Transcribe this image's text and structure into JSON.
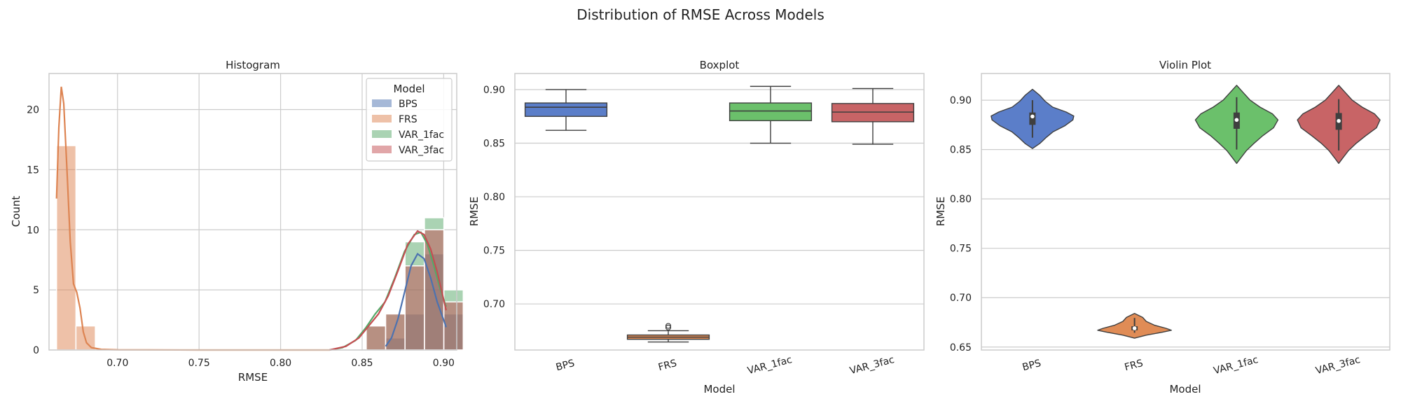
{
  "suptitle": "Distribution of RMSE Across Models",
  "colors": {
    "BPS": "#4c72b0",
    "FRS": "#dd8452",
    "VAR_1fac": "#55a868",
    "VAR_3fac": "#c44e52",
    "BPS_box": "#5b7ec9",
    "FRS_box": "#e08c56",
    "VAR_1fac_box": "#6bc06b",
    "VAR_3fac_box": "#c86466"
  },
  "chart_data": [
    {
      "type": "histogram",
      "title": "Histogram",
      "xlabel": "RMSE",
      "ylabel": "Count",
      "xlim": [
        0.658,
        0.908
      ],
      "ylim": [
        0,
        23
      ],
      "xticks": [
        0.7,
        0.75,
        0.8,
        0.85,
        0.9
      ],
      "xtick_labels": [
        "0.70",
        "0.75",
        "0.80",
        "0.85",
        "0.90"
      ],
      "yticks": [
        0,
        5,
        10,
        15,
        20
      ],
      "ytick_labels": [
        "0",
        "5",
        "10",
        "15",
        "20"
      ],
      "grid": true,
      "legend": {
        "title": "Model",
        "placement": "top-right",
        "entries": [
          "BPS",
          "FRS",
          "VAR_1fac",
          "VAR_3fac"
        ]
      },
      "bin_width": 0.0119,
      "series": [
        {
          "name": "BPS",
          "bins": [
            [
              0.8644,
              1
            ],
            [
              0.8763,
              3
            ],
            [
              0.8882,
              8
            ],
            [
              0.9001,
              3
            ]
          ]
        },
        {
          "name": "FRS",
          "bins": [
            [
              0.6626,
              17
            ],
            [
              0.6745,
              2
            ]
          ]
        },
        {
          "name": "VAR_1fac",
          "bins": [
            [
              0.8525,
              2
            ],
            [
              0.8644,
              3
            ],
            [
              0.8763,
              9
            ],
            [
              0.8882,
              11
            ],
            [
              0.9001,
              5
            ]
          ]
        },
        {
          "name": "VAR_3fac",
          "bins": [
            [
              0.8525,
              2
            ],
            [
              0.8644,
              3
            ],
            [
              0.8763,
              7
            ],
            [
              0.8882,
              10
            ],
            [
              0.9001,
              4
            ]
          ]
        }
      ],
      "kde": [
        {
          "name": "BPS",
          "points": [
            [
              0.8644,
              0.3
            ],
            [
              0.868,
              1.0
            ],
            [
              0.872,
              2.6
            ],
            [
              0.876,
              4.8
            ],
            [
              0.88,
              7.0
            ],
            [
              0.884,
              8.0
            ],
            [
              0.888,
              7.6
            ],
            [
              0.892,
              6.0
            ],
            [
              0.896,
              4.0
            ],
            [
              0.9,
              2.5
            ],
            [
              0.9015,
              1.9
            ]
          ]
        },
        {
          "name": "FRS",
          "points": [
            [
              0.6626,
              12.6
            ],
            [
              0.664,
              18.5
            ],
            [
              0.6655,
              21.9
            ],
            [
              0.667,
              20.5
            ],
            [
              0.669,
              15.0
            ],
            [
              0.671,
              9.0
            ],
            [
              0.673,
              5.5
            ],
            [
              0.675,
              4.8
            ],
            [
              0.677,
              3.5
            ],
            [
              0.679,
              1.5
            ],
            [
              0.681,
              0.6
            ],
            [
              0.684,
              0.2
            ],
            [
              0.69,
              0.05
            ],
            [
              0.7,
              0.02
            ],
            [
              0.75,
              0.0
            ],
            [
              0.8,
              0.0
            ],
            [
              0.83,
              0.0
            ]
          ]
        },
        {
          "name": "VAR_1fac",
          "points": [
            [
              0.83,
              0.0
            ],
            [
              0.838,
              0.2
            ],
            [
              0.846,
              0.8
            ],
            [
              0.852,
              1.8
            ],
            [
              0.858,
              3.0
            ],
            [
              0.864,
              4.0
            ],
            [
              0.87,
              6.0
            ],
            [
              0.876,
              8.2
            ],
            [
              0.882,
              9.6
            ],
            [
              0.886,
              9.8
            ],
            [
              0.89,
              8.8
            ],
            [
              0.894,
              7.0
            ],
            [
              0.898,
              5.0
            ],
            [
              0.9015,
              3.6
            ]
          ]
        },
        {
          "name": "VAR_3fac",
          "points": [
            [
              0.83,
              0.0
            ],
            [
              0.84,
              0.3
            ],
            [
              0.848,
              1.0
            ],
            [
              0.854,
              2.0
            ],
            [
              0.86,
              3.0
            ],
            [
              0.866,
              4.5
            ],
            [
              0.872,
              6.6
            ],
            [
              0.878,
              8.8
            ],
            [
              0.884,
              9.9
            ],
            [
              0.888,
              9.6
            ],
            [
              0.892,
              8.4
            ],
            [
              0.896,
              6.5
            ],
            [
              0.9015,
              3.3
            ]
          ]
        }
      ]
    },
    {
      "type": "box",
      "title": "Boxplot",
      "xlabel": "Model",
      "ylabel": "RMSE",
      "categories": [
        "BPS",
        "FRS",
        "VAR_1fac",
        "VAR_3fac"
      ],
      "ylim": [
        0.657,
        0.915
      ],
      "yticks": [
        0.7,
        0.75,
        0.8,
        0.85,
        0.9
      ],
      "ytick_labels": [
        "0.70",
        "0.75",
        "0.80",
        "0.85",
        "0.90"
      ],
      "grid": true,
      "boxes": [
        {
          "name": "BPS",
          "whislo": 0.862,
          "q1": 0.875,
          "med": 0.8835,
          "q3": 0.8875,
          "whishi": 0.9,
          "fliers": []
        },
        {
          "name": "FRS",
          "whislo": 0.6645,
          "q1": 0.667,
          "med": 0.669,
          "q3": 0.671,
          "whishi": 0.675,
          "fliers": [
            0.678,
            0.6795
          ]
        },
        {
          "name": "VAR_1fac",
          "whislo": 0.85,
          "q1": 0.871,
          "med": 0.88,
          "q3": 0.8875,
          "whishi": 0.903,
          "fliers": []
        },
        {
          "name": "VAR_3fac",
          "whislo": 0.849,
          "q1": 0.87,
          "med": 0.879,
          "q3": 0.887,
          "whishi": 0.901,
          "fliers": []
        }
      ]
    },
    {
      "type": "violin",
      "title": "Violin Plot",
      "xlabel": "Model",
      "ylabel": "RMSE",
      "categories": [
        "BPS",
        "FRS",
        "VAR_1fac",
        "VAR_3fac"
      ],
      "ylim": [
        0.647,
        0.927
      ],
      "yticks": [
        0.65,
        0.7,
        0.75,
        0.8,
        0.85,
        0.9
      ],
      "ytick_labels": [
        "0.65",
        "0.70",
        "0.75",
        "0.80",
        "0.85",
        "0.90"
      ],
      "grid": true,
      "violins": [
        {
          "name": "BPS",
          "q1": 0.875,
          "med": 0.8835,
          "q3": 0.8875,
          "whislo": 0.862,
          "whishi": 0.9,
          "profile": [
            [
              0.851,
              0.0
            ],
            [
              0.856,
              0.16
            ],
            [
              0.862,
              0.3
            ],
            [
              0.868,
              0.46
            ],
            [
              0.874,
              0.72
            ],
            [
              0.88,
              0.9
            ],
            [
              0.884,
              0.92
            ],
            [
              0.888,
              0.75
            ],
            [
              0.893,
              0.45
            ],
            [
              0.899,
              0.28
            ],
            [
              0.905,
              0.16
            ],
            [
              0.911,
              0.0
            ]
          ]
        },
        {
          "name": "FRS",
          "q1": 0.667,
          "med": 0.669,
          "q3": 0.671,
          "whislo": 0.6645,
          "whishi": 0.6795,
          "profile": [
            [
              0.659,
              0.0
            ],
            [
              0.662,
              0.26
            ],
            [
              0.665,
              0.62
            ],
            [
              0.667,
              0.82
            ],
            [
              0.669,
              0.7
            ],
            [
              0.672,
              0.45
            ],
            [
              0.676,
              0.26
            ],
            [
              0.68,
              0.18
            ],
            [
              0.684,
              0.0
            ]
          ]
        },
        {
          "name": "VAR_1fac",
          "q1": 0.871,
          "med": 0.88,
          "q3": 0.8875,
          "whislo": 0.85,
          "whishi": 0.903,
          "profile": [
            [
              0.836,
              0.0
            ],
            [
              0.842,
              0.1
            ],
            [
              0.849,
              0.22
            ],
            [
              0.856,
              0.38
            ],
            [
              0.864,
              0.58
            ],
            [
              0.872,
              0.82
            ],
            [
              0.88,
              0.92
            ],
            [
              0.886,
              0.8
            ],
            [
              0.893,
              0.52
            ],
            [
              0.9,
              0.3
            ],
            [
              0.907,
              0.16
            ],
            [
              0.915,
              0.0
            ]
          ]
        },
        {
          "name": "VAR_3fac",
          "q1": 0.87,
          "med": 0.879,
          "q3": 0.887,
          "whislo": 0.849,
          "whishi": 0.901,
          "profile": [
            [
              0.836,
              0.0
            ],
            [
              0.842,
              0.1
            ],
            [
              0.849,
              0.22
            ],
            [
              0.856,
              0.38
            ],
            [
              0.864,
              0.6
            ],
            [
              0.872,
              0.84
            ],
            [
              0.88,
              0.92
            ],
            [
              0.886,
              0.8
            ],
            [
              0.893,
              0.52
            ],
            [
              0.9,
              0.3
            ],
            [
              0.907,
              0.16
            ],
            [
              0.915,
              0.0
            ]
          ]
        }
      ]
    }
  ]
}
